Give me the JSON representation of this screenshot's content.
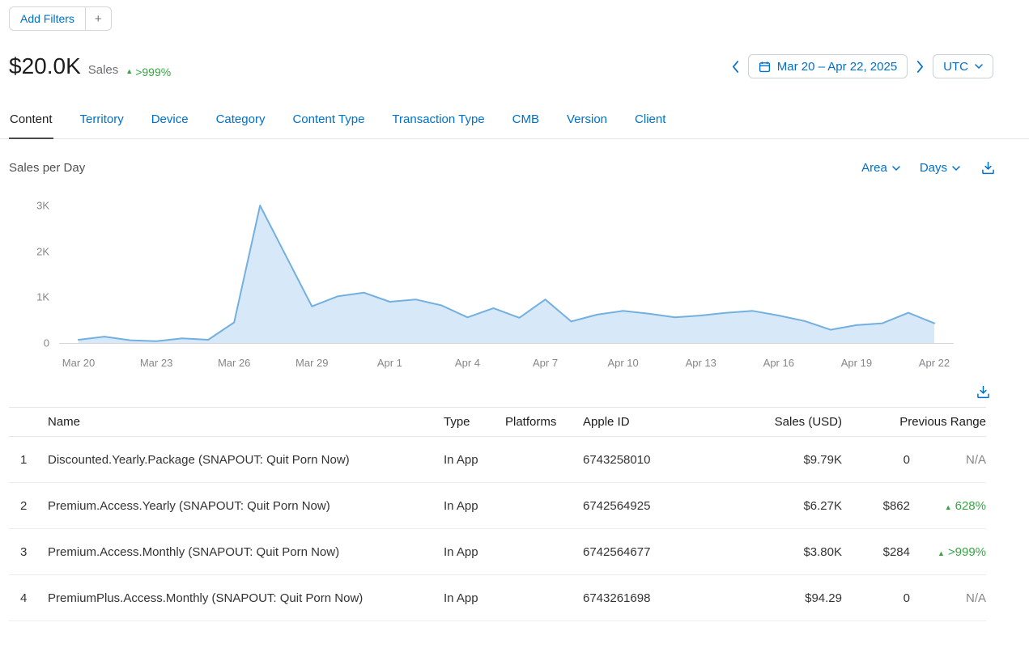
{
  "filters": {
    "add_filters_label": "Add Filters",
    "add_button_label": "+"
  },
  "summary": {
    "value": "$20.0K",
    "label": "Sales",
    "change": ">999%",
    "change_direction": "up"
  },
  "date_picker": {
    "range": "Mar 20 – Apr 22, 2025",
    "timezone": "UTC"
  },
  "tabs": [
    {
      "label": "Content",
      "active": true
    },
    {
      "label": "Territory",
      "active": false
    },
    {
      "label": "Device",
      "active": false
    },
    {
      "label": "Category",
      "active": false
    },
    {
      "label": "Content Type",
      "active": false
    },
    {
      "label": "Transaction Type",
      "active": false
    },
    {
      "label": "CMB",
      "active": false
    },
    {
      "label": "Version",
      "active": false
    },
    {
      "label": "Client",
      "active": false
    }
  ],
  "chart_section": {
    "title": "Sales per Day",
    "chart_type_label": "Area",
    "interval_label": "Days"
  },
  "chart_data": {
    "type": "area",
    "title": "Sales per Day",
    "x": [
      "Mar 20",
      "Mar 21",
      "Mar 22",
      "Mar 23",
      "Mar 24",
      "Mar 25",
      "Mar 26",
      "Mar 27",
      "Mar 28",
      "Mar 29",
      "Mar 30",
      "Mar 31",
      "Apr 1",
      "Apr 2",
      "Apr 3",
      "Apr 4",
      "Apr 5",
      "Apr 6",
      "Apr 7",
      "Apr 8",
      "Apr 9",
      "Apr 10",
      "Apr 11",
      "Apr 12",
      "Apr 13",
      "Apr 14",
      "Apr 15",
      "Apr 16",
      "Apr 17",
      "Apr 18",
      "Apr 19",
      "Apr 20",
      "Apr 21",
      "Apr 22"
    ],
    "values": [
      70,
      140,
      60,
      40,
      100,
      70,
      450,
      3000,
      1900,
      800,
      1020,
      1100,
      900,
      950,
      820,
      560,
      760,
      550,
      950,
      470,
      620,
      700,
      640,
      560,
      600,
      660,
      700,
      600,
      480,
      290,
      390,
      430,
      660,
      430
    ],
    "ylim": [
      0,
      3000
    ],
    "ytick_values": [
      0,
      1000,
      2000,
      3000
    ],
    "yticks": [
      "0",
      "1K",
      "2K",
      "3K"
    ],
    "xtick_every": 3,
    "xlabel": "",
    "ylabel": "",
    "grid": false,
    "legend": false,
    "line_color": "#73b0e0",
    "fill_color": "#d7e9f8"
  },
  "table": {
    "headers": {
      "name": "Name",
      "type": "Type",
      "platforms": "Platforms",
      "apple_id": "Apple ID",
      "sales": "Sales (USD)",
      "previous_range": "Previous Range"
    },
    "rows": [
      {
        "index": "1",
        "name": "Discounted.Yearly.Package (SNAPOUT: Quit Porn Now)",
        "type": "In App",
        "platforms": "",
        "apple_id": "6743258010",
        "sales": "$9.79K",
        "previous": "0",
        "change": "N/A",
        "change_direction": "none"
      },
      {
        "index": "2",
        "name": "Premium.Access.Yearly (SNAPOUT: Quit Porn Now)",
        "type": "In App",
        "platforms": "",
        "apple_id": "6742564925",
        "sales": "$6.27K",
        "previous": "$862",
        "change": "628%",
        "change_direction": "up"
      },
      {
        "index": "3",
        "name": "Premium.Access.Monthly (SNAPOUT: Quit Porn Now)",
        "type": "In App",
        "platforms": "",
        "apple_id": "6742564677",
        "sales": "$3.80K",
        "previous": "$284",
        "change": ">999%",
        "change_direction": "up"
      },
      {
        "index": "4",
        "name": "PremiumPlus.Access.Monthly (SNAPOUT: Quit Porn Now)",
        "type": "In App",
        "platforms": "",
        "apple_id": "6743261698",
        "sales": "$94.29",
        "previous": "0",
        "change": "N/A",
        "change_direction": "none"
      }
    ]
  },
  "colors": {
    "link": "#0070c9",
    "positive": "#36a544",
    "muted": "#86868b",
    "border": "#e5e5ea",
    "text": "#333336"
  }
}
